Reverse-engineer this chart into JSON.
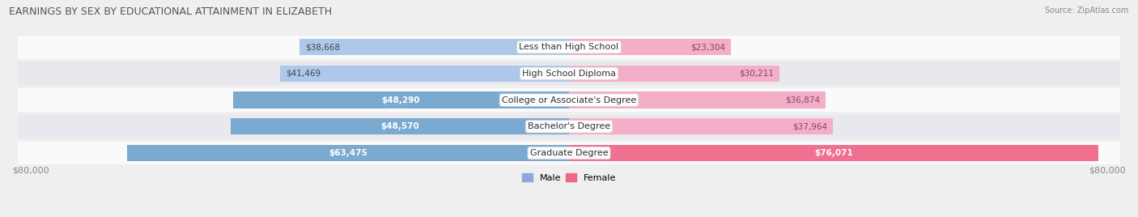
{
  "title": "EARNINGS BY SEX BY EDUCATIONAL ATTAINMENT IN ELIZABETH",
  "source": "Source: ZipAtlas.com",
  "categories": [
    "Less than High School",
    "High School Diploma",
    "College or Associate's Degree",
    "Bachelor's Degree",
    "Graduate Degree"
  ],
  "male_values": [
    38668,
    41469,
    48290,
    48570,
    63475
  ],
  "female_values": [
    23304,
    30211,
    36874,
    37964,
    76071
  ],
  "max_val": 80000,
  "male_color_light": "#adc8e8",
  "male_color_dark": "#7aaad0",
  "female_color_light": "#f5aec8",
  "female_color_dark": "#f07090",
  "bg_color": "#efefef",
  "row_color_light": "#fafafa",
  "row_color_dark": "#e8e8ee",
  "title_fontsize": 9,
  "source_fontsize": 7,
  "bar_label_fontsize": 7.5,
  "cat_label_fontsize": 8,
  "axis_label_fontsize": 8,
  "legend_male_color": "#88aadd",
  "legend_female_color": "#ee6688",
  "xlabel_left": "$80,000",
  "xlabel_right": "$80,000",
  "male_inside_threshold": 2,
  "female_inside_indices": [
    4
  ]
}
